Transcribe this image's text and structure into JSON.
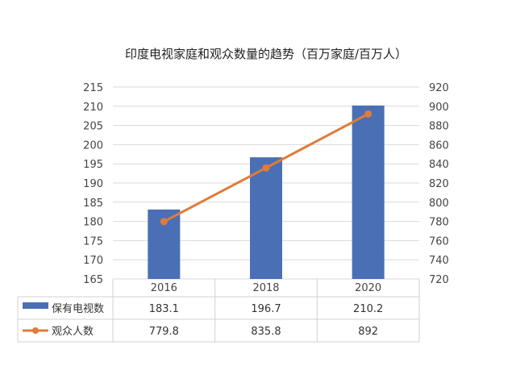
{
  "chart_data": {
    "type": "bar",
    "title": "印度电视家庭和观众数量的趋势（百万家庭/百万人）",
    "categories": [
      "2016",
      "2018",
      "2020"
    ],
    "series": [
      {
        "name": "保有电视数",
        "type": "bar",
        "axis": "left",
        "color": "#4a6fb5",
        "values": [
          183.1,
          196.7,
          210.2
        ],
        "value_labels": [
          "183.1",
          "196.7",
          "210.2"
        ]
      },
      {
        "name": "观众人数",
        "type": "line",
        "axis": "right",
        "color": "#e07b39",
        "values": [
          779.8,
          835.8,
          892
        ],
        "value_labels": [
          "779.8",
          "835.8",
          "892"
        ]
      }
    ],
    "y_left": {
      "min": 165,
      "max": 215,
      "step": 5,
      "ticks": [
        "165",
        "170",
        "175",
        "180",
        "185",
        "190",
        "195",
        "200",
        "205",
        "210",
        "215"
      ]
    },
    "y_right": {
      "min": 720,
      "max": 920,
      "step": 20,
      "ticks": [
        "720",
        "740",
        "760",
        "780",
        "800",
        "820",
        "840",
        "860",
        "880",
        "900",
        "920"
      ]
    },
    "grid": true,
    "legend": "data-table-below"
  }
}
